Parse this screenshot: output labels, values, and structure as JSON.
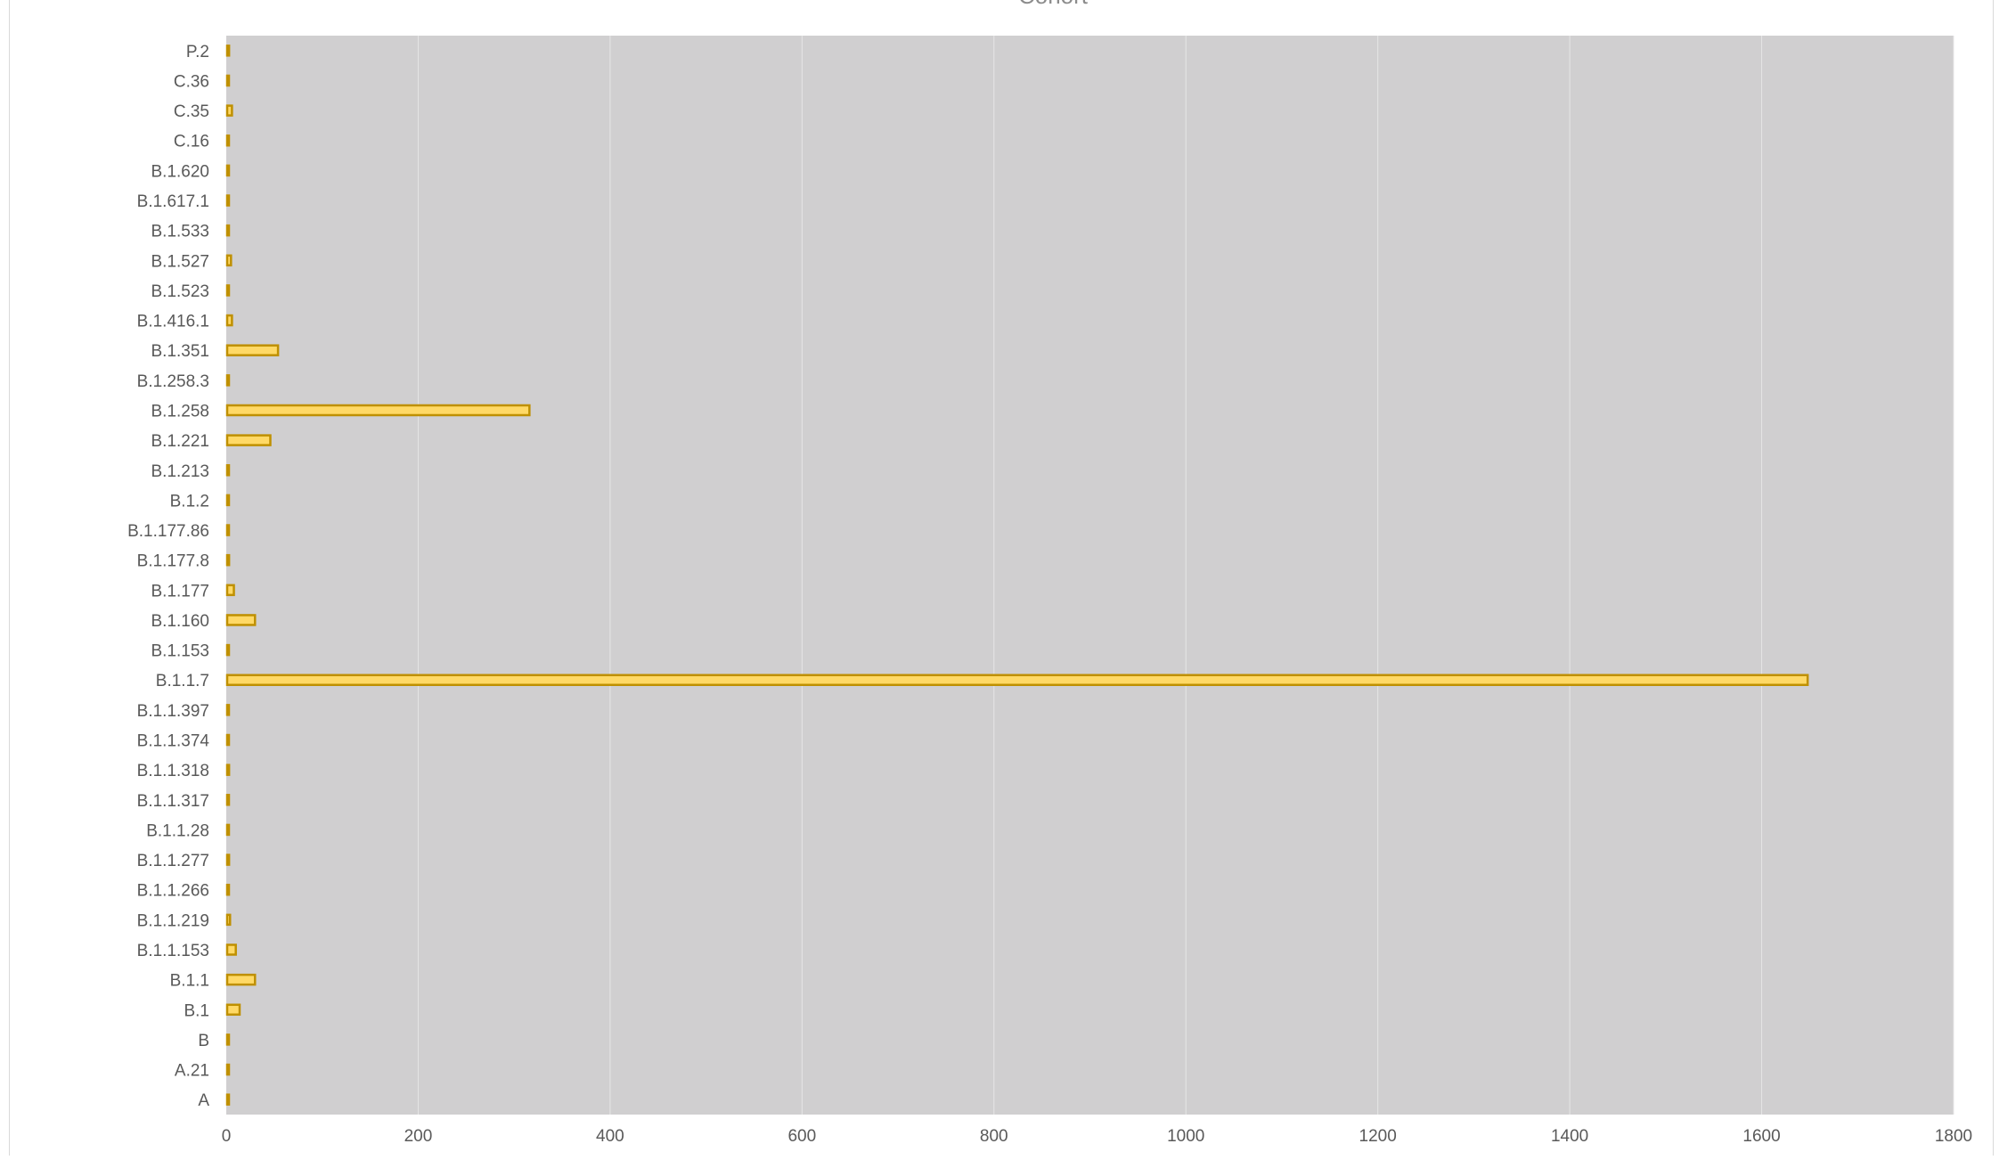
{
  "chart_data": {
    "type": "bar",
    "orientation": "horizontal",
    "title": "Cohort",
    "xlabel": "",
    "ylabel": "",
    "xlim": [
      0,
      1800
    ],
    "x_ticks": [
      0,
      200,
      400,
      600,
      800,
      1000,
      1200,
      1400,
      1600,
      1800
    ],
    "grid": true,
    "legend": "none",
    "categories": [
      "A",
      "A.21",
      "B",
      "B.1",
      "B.1.1",
      "B.1.1.153",
      "B.1.1.219",
      "B.1.1.266",
      "B.1.1.277",
      "B.1.1.28",
      "B.1.1.317",
      "B.1.1.318",
      "B.1.1.374",
      "B.1.1.397",
      "B.1.1.7",
      "B.1.153",
      "B.1.160",
      "B.1.177",
      "B.1.177.8",
      "B.1.177.86",
      "B.1.2",
      "B.1.213",
      "B.1.221",
      "B.1.258",
      "B.1.258.3",
      "B.1.351",
      "B.1.416.1",
      "B.1.523",
      "B.1.527",
      "B.1.533",
      "B.1.617.1",
      "B.1.620",
      "C.16",
      "C.35",
      "C.36",
      "P.2"
    ],
    "values": [
      1,
      1,
      1,
      13,
      29,
      9,
      3,
      1,
      2,
      1,
      1,
      2,
      1,
      1,
      1647,
      1,
      29,
      7,
      2,
      1,
      1,
      1,
      45,
      315,
      1,
      53,
      5,
      1,
      4,
      1,
      1,
      1,
      1,
      5,
      1,
      2
    ],
    "colors": {
      "plot_background": "#d0cfd0",
      "bar_fill": "#ffd966",
      "bar_stroke": "#bf9000",
      "gridline": "#e6e6e6",
      "label_text": "#595959",
      "title_text": "#8c8c8c"
    }
  }
}
